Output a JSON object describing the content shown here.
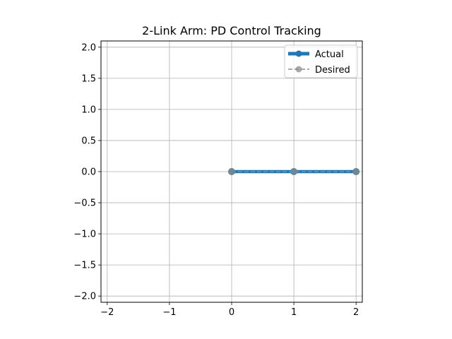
{
  "chart_data": {
    "type": "line",
    "title": "2-Link Arm: PD Control Tracking",
    "xlabel": "",
    "ylabel": "",
    "xlim": [
      -2.1,
      2.1
    ],
    "ylim": [
      -2.1,
      2.1
    ],
    "xticks": [
      -2,
      -1,
      0,
      1,
      2
    ],
    "yticks": [
      -2.0,
      -1.5,
      -1.0,
      -0.5,
      0.0,
      0.5,
      1.0,
      1.5,
      2.0
    ],
    "xtick_labels": [
      "−2",
      "−1",
      "0",
      "1",
      "2"
    ],
    "ytick_labels": [
      "−2.0",
      "−1.5",
      "−1.0",
      "−0.5",
      "0.0",
      "0.5",
      "1.0",
      "1.5",
      "2.0"
    ],
    "grid": true,
    "legend_position": "top-right",
    "series": [
      {
        "name": "Actual",
        "style": "solid",
        "color": "#1f77b4",
        "marker": "circle",
        "x": [
          0,
          1,
          2
        ],
        "y": [
          0,
          0,
          0
        ]
      },
      {
        "name": "Desired",
        "style": "dashed",
        "color": "#8c8c8c",
        "marker": "circle",
        "x": [
          0,
          1,
          2
        ],
        "y": [
          0,
          0,
          0
        ]
      }
    ]
  }
}
